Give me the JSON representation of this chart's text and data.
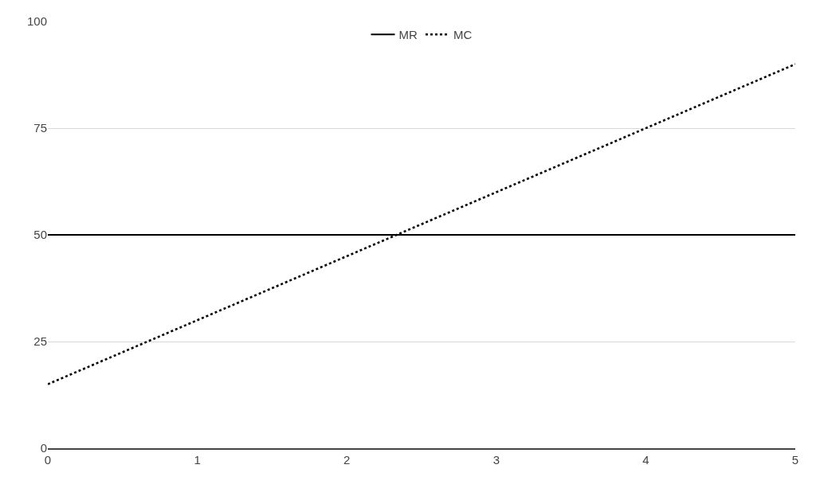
{
  "chart_data": {
    "type": "line",
    "x": [
      0,
      5
    ],
    "series": [
      {
        "name": "MR",
        "color": "#000000",
        "values": [
          50,
          50
        ],
        "line_style": "solid"
      },
      {
        "name": "MC",
        "color": "#000000",
        "values": [
          15,
          90
        ],
        "line_style": "dotted"
      }
    ],
    "xlim": [
      0,
      5
    ],
    "xticks": [
      0,
      1,
      2,
      3,
      4,
      5
    ],
    "ylim": [
      0,
      100
    ],
    "yticks": [
      0,
      25,
      50,
      75,
      100
    ],
    "grid": "y",
    "legend": "top",
    "marker": "none"
  }
}
